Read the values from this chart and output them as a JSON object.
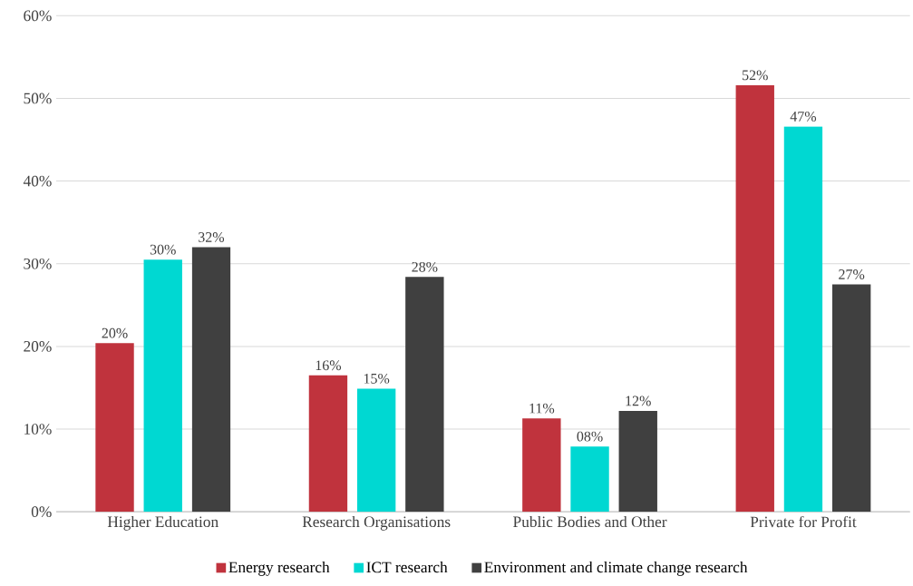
{
  "chart_data": {
    "type": "bar",
    "categories": [
      "Higher Education",
      "Research Organisations",
      "Public Bodies and Other",
      "Private for Profit"
    ],
    "series": [
      {
        "name": "Energy research",
        "color": "#c0333d",
        "values": [
          20.4,
          16.5,
          11.3,
          51.6
        ],
        "value_labels": [
          "20%",
          "16%",
          "11%",
          "52%"
        ]
      },
      {
        "name": "ICT research",
        "color": "#00d8d2",
        "values": [
          30.5,
          14.9,
          7.9,
          46.6
        ],
        "value_labels": [
          "30%",
          "15%",
          "08%",
          "47%"
        ]
      },
      {
        "name": "Environment and climate change research",
        "color": "#404040",
        "values": [
          32.0,
          28.4,
          12.2,
          27.5
        ],
        "value_labels": [
          "32%",
          "28%",
          "12%",
          "27%"
        ]
      }
    ],
    "ylim": [
      0,
      60
    ],
    "yticks": [
      {
        "value": 0,
        "label": "0%"
      },
      {
        "value": 10,
        "label": "10%"
      },
      {
        "value": 20,
        "label": "20%"
      },
      {
        "value": 30,
        "label": "30%"
      },
      {
        "value": 40,
        "label": "40%"
      },
      {
        "value": 50,
        "label": "50%"
      },
      {
        "value": 60,
        "label": "60%"
      }
    ],
    "grid": "y",
    "legend": "bottom"
  }
}
